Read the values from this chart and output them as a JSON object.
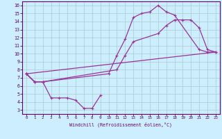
{
  "xlabel": "Windchill (Refroidissement éolien,°C)",
  "bg_color": "#cceeff",
  "grid_color": "#aacccc",
  "line_color": "#993399",
  "spine_color": "#660066",
  "xlim": [
    -0.5,
    23.5
  ],
  "ylim": [
    2.5,
    16.5
  ],
  "xticks": [
    0,
    1,
    2,
    3,
    4,
    5,
    6,
    7,
    8,
    9,
    10,
    11,
    12,
    13,
    14,
    15,
    16,
    17,
    18,
    19,
    20,
    21,
    22,
    23
  ],
  "yticks": [
    3,
    4,
    5,
    6,
    7,
    8,
    9,
    10,
    11,
    12,
    13,
    14,
    15,
    16
  ],
  "line1_x": [
    0,
    1,
    2,
    3,
    4,
    5,
    6,
    7,
    8,
    9
  ],
  "line1_y": [
    7.5,
    6.5,
    6.5,
    4.5,
    4.5,
    4.5,
    4.2,
    3.2,
    3.2,
    4.8
  ],
  "line2_x": [
    0,
    1,
    2,
    10,
    11,
    12,
    13,
    14,
    15,
    16,
    17,
    18,
    21,
    22,
    23
  ],
  "line2_y": [
    7.5,
    6.5,
    6.5,
    7.5,
    9.8,
    11.8,
    14.5,
    15.0,
    15.2,
    16.0,
    15.2,
    14.8,
    10.5,
    10.2,
    10.2
  ],
  "line3_x": [
    0,
    1,
    2,
    11,
    12,
    13,
    16,
    17,
    18,
    19,
    20,
    21,
    22,
    23
  ],
  "line3_y": [
    7.5,
    6.5,
    6.5,
    8.0,
    9.8,
    11.5,
    12.5,
    13.5,
    14.2,
    14.2,
    14.2,
    13.2,
    10.5,
    10.2
  ],
  "line4_x": [
    0,
    23
  ],
  "line4_y": [
    7.5,
    10.2
  ]
}
